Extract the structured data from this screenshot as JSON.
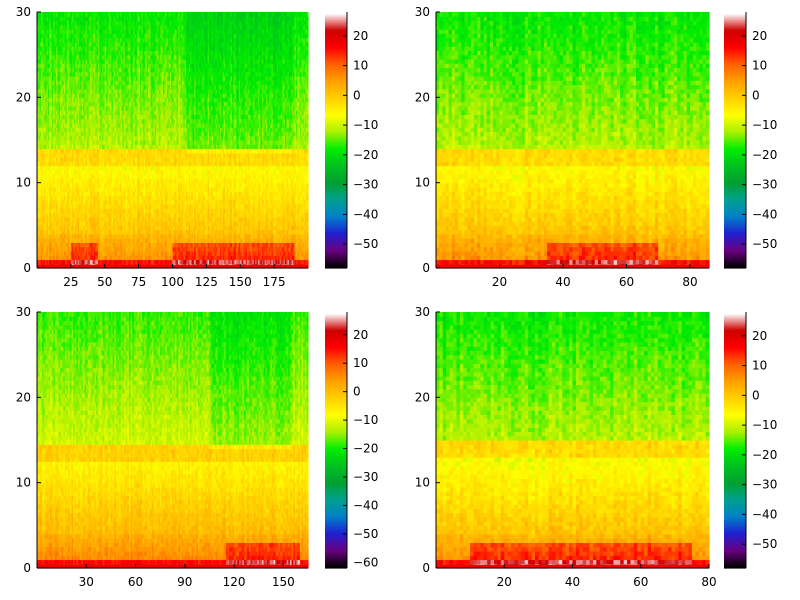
{
  "chart_data": [
    {
      "type": "heatmap",
      "title": "",
      "xlabel": "",
      "ylabel": "",
      "xlim": [
        0,
        200
      ],
      "ylim": [
        0,
        30
      ],
      "xticks": [
        25,
        50,
        75,
        100,
        125,
        150,
        175
      ],
      "yticks": [
        0,
        10,
        20,
        30
      ],
      "colorbar": {
        "ticks": [
          20,
          10,
          0,
          -10,
          -20,
          -30,
          -40,
          -50
        ],
        "range": [
          -58,
          28
        ]
      },
      "n_columns": 200,
      "band_edge_y": 13.5,
      "low_freq_hotspots": [
        [
          25,
          45
        ],
        [
          100,
          190
        ]
      ],
      "dark_column_ranges": [
        [
          110,
          190
        ]
      ]
    },
    {
      "type": "heatmap",
      "title": "",
      "xlabel": "",
      "ylabel": "",
      "xlim": [
        0,
        86
      ],
      "ylim": [
        0,
        30
      ],
      "xticks": [
        20,
        40,
        60,
        80
      ],
      "yticks": [
        0,
        10,
        20,
        30
      ],
      "colorbar": {
        "ticks": [
          20,
          10,
          0,
          -10,
          -20,
          -30,
          -40,
          -50
        ],
        "range": [
          -58,
          28
        ]
      },
      "n_columns": 86,
      "band_edge_y": 13.5,
      "low_freq_hotspots": [
        [
          35,
          70
        ]
      ],
      "dark_column_ranges": []
    },
    {
      "type": "heatmap",
      "title": "",
      "xlabel": "",
      "ylabel": "",
      "xlim": [
        0,
        165
      ],
      "ylim": [
        0,
        30
      ],
      "xticks": [
        30,
        60,
        90,
        120,
        150
      ],
      "yticks": [
        0,
        10,
        20,
        30
      ],
      "colorbar": {
        "ticks": [
          20,
          10,
          0,
          -10,
          -20,
          -30,
          -40,
          -50,
          -60
        ],
        "range": [
          -62,
          28
        ]
      },
      "n_columns": 165,
      "band_edge_y": 14,
      "low_freq_hotspots": [
        [
          115,
          160
        ]
      ],
      "dark_column_ranges": [
        [
          105,
          155
        ]
      ]
    },
    {
      "type": "heatmap",
      "title": "",
      "xlabel": "",
      "ylabel": "",
      "xlim": [
        0,
        80
      ],
      "ylim": [
        0,
        30
      ],
      "xticks": [
        20,
        40,
        60,
        80
      ],
      "yticks": [
        0,
        10,
        20,
        30
      ],
      "colorbar": {
        "ticks": [
          20,
          10,
          0,
          -10,
          -20,
          -30,
          -40,
          -50
        ],
        "range": [
          -58,
          28
        ]
      },
      "n_columns": 80,
      "band_edge_y": 14.5,
      "low_freq_hotspots": [
        [
          10,
          75
        ]
      ],
      "dark_column_ranges": []
    }
  ],
  "colorscale": [
    "#000000",
    "#6a0080",
    "#2020d0",
    "#0080c8",
    "#00a090",
    "#00a030",
    "#00c020",
    "#00ee00",
    "#aaf000",
    "#ffff00",
    "#ffd000",
    "#ffa000",
    "#ff6000",
    "#ff0000",
    "#cc0000",
    "#ffffff"
  ]
}
